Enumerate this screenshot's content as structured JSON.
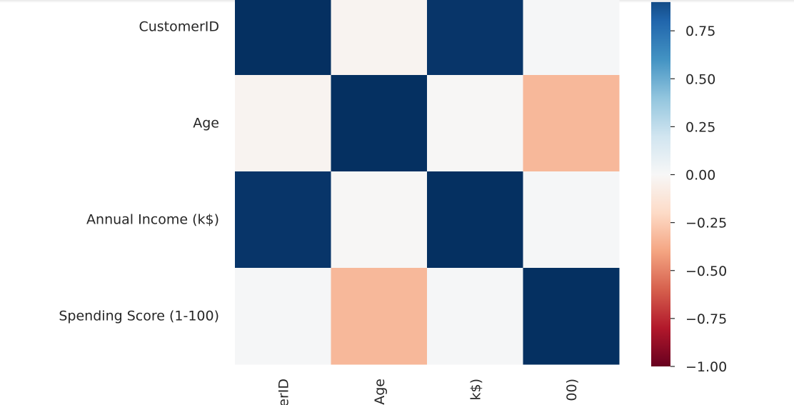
{
  "chart_data": {
    "type": "heatmap",
    "title": "",
    "xlabel": "",
    "ylabel": "",
    "row_labels": [
      "CustomerID",
      "Age",
      "Annual Income (k$)",
      "Spending Score (1-100)"
    ],
    "col_tick_labels": [
      "erID",
      "Age",
      "k$)",
      "00)"
    ],
    "values": [
      [
        1.0,
        -0.03,
        0.98,
        0.01
      ],
      [
        -0.03,
        1.0,
        -0.01,
        -0.33
      ],
      [
        0.98,
        -0.01,
        1.0,
        0.01
      ],
      [
        0.01,
        -0.33,
        0.01,
        1.0
      ]
    ],
    "colorbar": {
      "colormap": "RdBu",
      "range": [
        -1.0,
        0.9
      ],
      "ticks": [
        0.75,
        0.5,
        0.25,
        0.0,
        -0.25,
        -0.5,
        -0.75,
        -1.0
      ],
      "tick_labels": [
        "0.75",
        "0.50",
        "0.25",
        "0.00",
        "−0.25",
        "−0.50",
        "−0.75",
        "−1.00"
      ]
    },
    "legend": "right"
  }
}
